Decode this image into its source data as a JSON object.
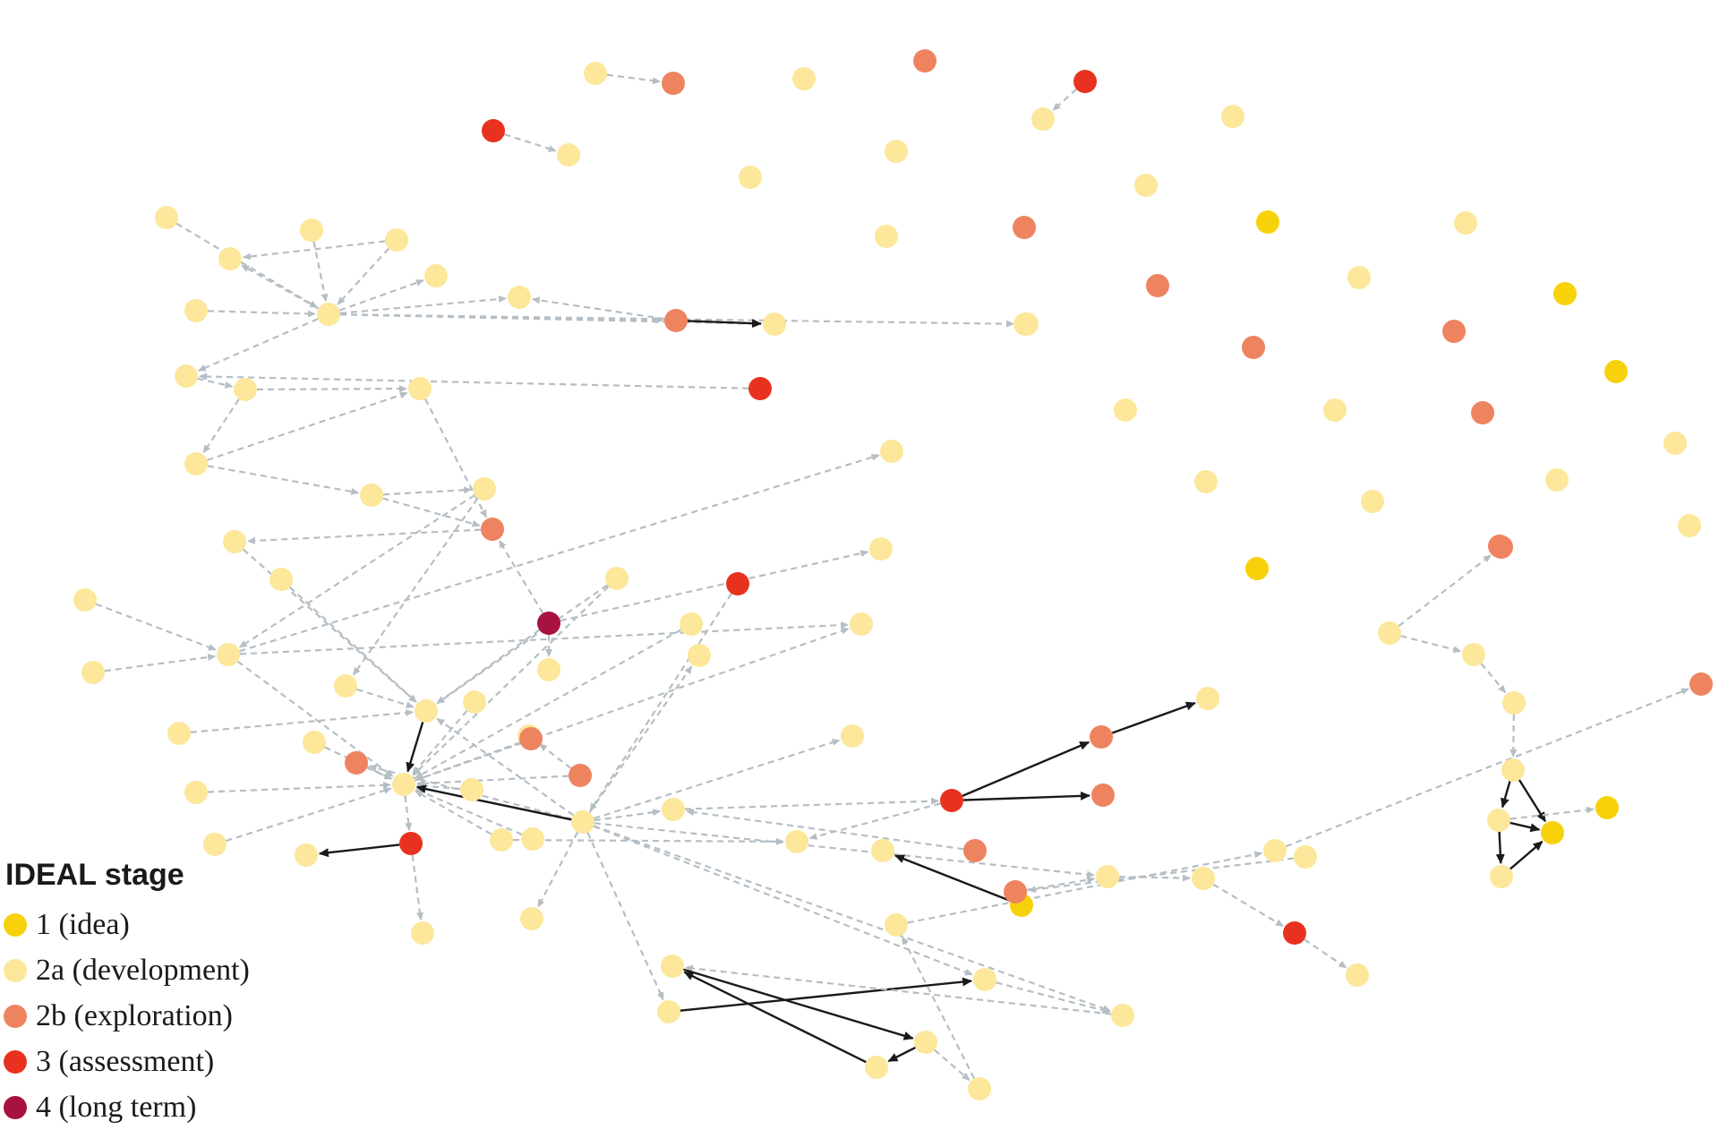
{
  "legend": {
    "title": "IDEAL stage",
    "items": [
      {
        "key": "1",
        "label": "1 (idea)",
        "color": "#F7D20A"
      },
      {
        "key": "2a",
        "label": "2a (development)",
        "color": "#FCE79A"
      },
      {
        "key": "2b",
        "label": "2b (exploration)",
        "color": "#EE8360"
      },
      {
        "key": "3",
        "label": "3 (assessment)",
        "color": "#E8321F"
      },
      {
        "key": "4",
        "label": "4 (long term)",
        "color": "#A8123E"
      }
    ]
  },
  "edge_colors": {
    "dashed": "#B5BEC4",
    "solid": "#1a1a1a"
  },
  "network": {
    "stage_of_node": {
      "n1": "2a",
      "n2": "2b",
      "n3": "2a",
      "n4": "2b",
      "n5": "3",
      "n6": "3",
      "n7": "2a",
      "n8": "2a",
      "n9": "2a",
      "n10": "2a",
      "n11": "2a",
      "n12": "2b",
      "n13": "2a",
      "n14": "1",
      "n15": "2a",
      "n16": "2b",
      "n17": "2a",
      "n18": "2b",
      "n19": "2a",
      "n20": "1",
      "n21": "2a",
      "n22": "2a",
      "n23": "2b",
      "n24": "2a",
      "n25": "2a",
      "n26": "1",
      "n27": "2b",
      "n28": "2a",
      "n29": "2a",
      "n30": "2b",
      "n31": "2a",
      "n32": "2a",
      "n33": "1",
      "n34": "2a",
      "n35": "1",
      "n36": "2b",
      "n37": "2a",
      "n38": "2a",
      "n39": "2a",
      "n40": "2a",
      "n41": "2a",
      "n42": "2a",
      "n43": "2a",
      "n44": "2a",
      "n45": "2a",
      "n46": "2a",
      "n47": "2a",
      "n48": "2a",
      "n49": "2b",
      "n50": "2a",
      "n51": "3",
      "n52": "2a",
      "n53": "2a",
      "n54": "2a",
      "n55": "2a",
      "n56": "2b",
      "n57": "2a",
      "n58": "2a",
      "n59": "2a",
      "n60": "2a",
      "n61": "4",
      "n62": "2a",
      "n63": "2a",
      "n64": "2a",
      "n65": "2a",
      "n66": "2a",
      "n67": "2a",
      "n68": "2a",
      "n69": "2a",
      "n70": "2a",
      "n71": "2a",
      "n72": "2a",
      "n73": "2a",
      "n74": "2b",
      "n75": "2a",
      "n76": "2a",
      "n77": "2a",
      "n78": "3",
      "n79": "2a",
      "n80": "2a",
      "n81": "2a",
      "n82": "2a",
      "n83": "3",
      "n84": "2a",
      "n85": "2a",
      "n86": "2a",
      "n87": "2b",
      "n88": "2a",
      "n89": "2a",
      "n90": "2b",
      "n91": "2a",
      "n92": "2a",
      "n93": "2b",
      "n94": "3",
      "n95": "2a",
      "n96": "2b",
      "n97": "2b",
      "n98": "2a",
      "n99": "2a",
      "n100": "2a",
      "n101": "1",
      "n102": "2a",
      "n103": "2b",
      "n104": "2a",
      "n105": "2a",
      "n106": "2a",
      "n107": "3",
      "n108": "2a",
      "n109": "2a",
      "n110": "2a",
      "n111": "2a",
      "n112": "2a",
      "n113": "2a",
      "n114": "2a",
      "n115": "2a",
      "n116": "2a",
      "n117": "2a",
      "n118": "1",
      "n119": "2a",
      "n120": "2a",
      "n121": "2b"
    },
    "edges": [
      {
        "from": "n1",
        "to": "n2",
        "style": "dashed"
      },
      {
        "from": "n5",
        "to": "n7",
        "style": "dashed"
      },
      {
        "from": "n6",
        "to": "n9",
        "style": "dashed"
      },
      {
        "from": "n37",
        "to": "n36",
        "style": "dashed"
      },
      {
        "from": "n37",
        "to": "n38",
        "style": "dashed"
      },
      {
        "from": "n38",
        "to": "n39",
        "style": "dashed"
      },
      {
        "from": "n39",
        "to": "n40",
        "style": "dashed"
      },
      {
        "from": "n40",
        "to": "n117",
        "style": "solid"
      },
      {
        "from": "n40",
        "to": "n118",
        "style": "solid"
      },
      {
        "from": "n117",
        "to": "n118",
        "style": "solid"
      },
      {
        "from": "n117",
        "to": "n119",
        "style": "solid"
      },
      {
        "from": "n119",
        "to": "n118",
        "style": "solid"
      },
      {
        "from": "n117",
        "to": "n35",
        "style": "dashed"
      },
      {
        "from": "n44",
        "to": "n22",
        "style": "dashed"
      },
      {
        "from": "n44",
        "to": "n42",
        "style": "dashed"
      },
      {
        "from": "n41",
        "to": "n44",
        "style": "dashed"
      },
      {
        "from": "n43",
        "to": "n44",
        "style": "dashed"
      },
      {
        "from": "n45",
        "to": "n44",
        "style": "dashed"
      },
      {
        "from": "n46",
        "to": "n44",
        "style": "dashed"
      },
      {
        "from": "n46",
        "to": "n42",
        "style": "dashed"
      },
      {
        "from": "n44",
        "to": "n48",
        "style": "dashed"
      },
      {
        "from": "n44",
        "to": "n49",
        "style": "dashed"
      },
      {
        "from": "n44",
        "to": "n50",
        "style": "dashed"
      },
      {
        "from": "n44",
        "to": "n52",
        "style": "dashed"
      },
      {
        "from": "n44",
        "to": "n47",
        "style": "dashed"
      },
      {
        "from": "n49",
        "to": "n50",
        "style": "solid"
      },
      {
        "from": "n51",
        "to": "n52",
        "style": "dashed"
      },
      {
        "from": "n52",
        "to": "n53",
        "style": "dashed"
      },
      {
        "from": "n53",
        "to": "n54",
        "style": "dashed"
      },
      {
        "from": "n53",
        "to": "n55",
        "style": "dashed"
      },
      {
        "from": "n54",
        "to": "n55",
        "style": "dashed"
      },
      {
        "from": "n49",
        "to": "n47",
        "style": "dashed"
      },
      {
        "from": "n54",
        "to": "n57",
        "style": "dashed"
      },
      {
        "from": "n56",
        "to": "n59",
        "style": "dashed"
      },
      {
        "from": "n55",
        "to": "n56",
        "style": "dashed"
      },
      {
        "from": "n57",
        "to": "n56",
        "style": "dashed"
      },
      {
        "from": "n61",
        "to": "n56",
        "style": "dashed"
      },
      {
        "from": "n61",
        "to": "n71",
        "style": "dashed"
      },
      {
        "from": "n61",
        "to": "n70",
        "style": "dashed"
      },
      {
        "from": "n61",
        "to": "n99",
        "style": "dashed"
      },
      {
        "from": "n57",
        "to": "n58",
        "style": "dashed"
      },
      {
        "from": "n58",
        "to": "n64",
        "style": "dashed"
      },
      {
        "from": "n58",
        "to": "n66",
        "style": "dashed"
      },
      {
        "from": "n66",
        "to": "n70",
        "style": "dashed"
      },
      {
        "from": "n59",
        "to": "n70",
        "style": "dashed"
      },
      {
        "from": "n60",
        "to": "n64",
        "style": "dashed"
      },
      {
        "from": "n62",
        "to": "n64",
        "style": "dashed"
      },
      {
        "from": "n63",
        "to": "n70",
        "style": "dashed"
      },
      {
        "from": "n64",
        "to": "n65",
        "style": "dashed"
      },
      {
        "from": "n64",
        "to": "n75",
        "style": "dashed"
      },
      {
        "from": "n64",
        "to": "n69",
        "style": "dashed"
      },
      {
        "from": "n67",
        "to": "n70",
        "style": "dashed"
      },
      {
        "from": "n67",
        "to": "n75",
        "style": "dashed"
      },
      {
        "from": "n68",
        "to": "n70",
        "style": "dashed"
      },
      {
        "from": "n70",
        "to": "n75",
        "style": "solid"
      },
      {
        "from": "n74",
        "to": "n75",
        "style": "dashed"
      },
      {
        "from": "n72",
        "to": "n75",
        "style": "dashed"
      },
      {
        "from": "n73",
        "to": "n75",
        "style": "dashed"
      },
      {
        "from": "n75",
        "to": "n69",
        "style": "dashed"
      },
      {
        "from": "n75",
        "to": "n78",
        "style": "dashed"
      },
      {
        "from": "n76",
        "to": "n75",
        "style": "dashed"
      },
      {
        "from": "n77",
        "to": "n75",
        "style": "dashed"
      },
      {
        "from": "n78",
        "to": "n79",
        "style": "solid"
      },
      {
        "from": "n78",
        "to": "n80",
        "style": "dashed"
      },
      {
        "from": "n83",
        "to": "n82",
        "style": "dashed"
      },
      {
        "from": "n82",
        "to": "n70",
        "style": "dashed"
      },
      {
        "from": "n82",
        "to": "n75",
        "style": "dashed"
      },
      {
        "from": "n82",
        "to": "n74",
        "style": "dashed"
      },
      {
        "from": "n82",
        "to": "n85",
        "style": "dashed"
      },
      {
        "from": "n82",
        "to": "n89",
        "style": "dashed"
      },
      {
        "from": "n82",
        "to": "n92",
        "style": "dashed"
      },
      {
        "from": "n82",
        "to": "n100",
        "style": "dashed"
      },
      {
        "from": "n82",
        "to": "n104",
        "style": "dashed"
      },
      {
        "from": "n82",
        "to": "n109",
        "style": "dashed"
      },
      {
        "from": "n82",
        "to": "n110",
        "style": "dashed"
      },
      {
        "from": "n82",
        "to": "n111",
        "style": "dashed"
      },
      {
        "from": "n84",
        "to": "n75",
        "style": "dashed"
      },
      {
        "from": "n86",
        "to": "n75",
        "style": "dashed"
      },
      {
        "from": "n87",
        "to": "n75",
        "style": "dashed"
      },
      {
        "from": "n87",
        "to": "n81",
        "style": "dashed"
      },
      {
        "from": "n88",
        "to": "n75",
        "style": "dashed"
      },
      {
        "from": "n88",
        "to": "n95",
        "style": "dashed"
      },
      {
        "from": "n90",
        "to": "n75",
        "style": "dashed"
      },
      {
        "from": "n91",
        "to": "n75",
        "style": "dashed"
      },
      {
        "from": "n82",
        "to": "n75",
        "style": "solid"
      },
      {
        "from": "n92",
        "to": "n94",
        "style": "dashed"
      },
      {
        "from": "n93",
        "to": "n92",
        "style": "dashed"
      },
      {
        "from": "n94",
        "to": "n95",
        "style": "dashed"
      },
      {
        "from": "n94",
        "to": "n96",
        "style": "solid"
      },
      {
        "from": "n94",
        "to": "n97",
        "style": "solid"
      },
      {
        "from": "n96",
        "to": "n98",
        "style": "solid"
      },
      {
        "from": "n101",
        "to": "n102",
        "style": "solid"
      },
      {
        "from": "n103",
        "to": "n104",
        "style": "dashed"
      },
      {
        "from": "n105",
        "to": "n103",
        "style": "dashed"
      },
      {
        "from": "n104",
        "to": "n106",
        "style": "dashed"
      },
      {
        "from": "n106",
        "to": "n107",
        "style": "dashed"
      },
      {
        "from": "n107",
        "to": "n108",
        "style": "dashed"
      },
      {
        "from": "n109",
        "to": "n110",
        "style": "solid"
      },
      {
        "from": "n110",
        "to": "n111",
        "style": "dashed"
      },
      {
        "from": "n111",
        "to": "n112",
        "style": "dashed"
      },
      {
        "from": "n112",
        "to": "n113",
        "style": "solid"
      },
      {
        "from": "n113",
        "to": "n114",
        "style": "solid"
      },
      {
        "from": "n114",
        "to": "n112",
        "style": "solid"
      },
      {
        "from": "n113",
        "to": "n115",
        "style": "dashed"
      },
      {
        "from": "n115",
        "to": "n116",
        "style": "dashed"
      },
      {
        "from": "n116",
        "to": "n120",
        "style": "dashed"
      },
      {
        "from": "n120",
        "to": "n121",
        "style": "dashed"
      }
    ]
  }
}
